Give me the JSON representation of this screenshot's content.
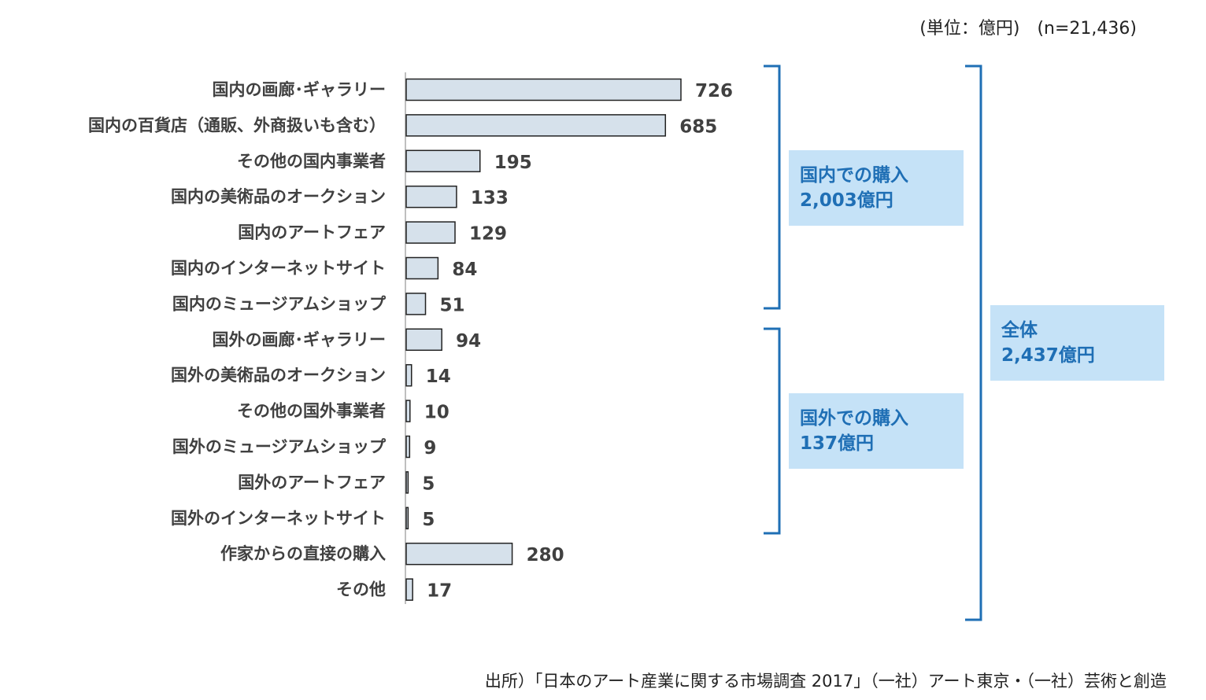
{
  "unit_note": "(単位：億円)　(n=21,436)",
  "source_note": "出所）「日本のアート産業に関する市場調査 2017」（一社）アート東京・（一社）芸術と創造",
  "groups": {
    "domestic": {
      "line1": "国内での購入",
      "line2": "2,003億円"
    },
    "overseas": {
      "line1": "国外での購入",
      "line2": "137億円"
    },
    "total": {
      "line1": "全体",
      "line2": "2,437億円"
    }
  },
  "colors": {
    "bar_fill": "#d6e1eb",
    "bar_stroke": "#222222",
    "bracket": "#1f6fb5",
    "group_box": "#c5e2f7",
    "group_text": "#1f6fb5"
  },
  "chart_data": {
    "type": "bar",
    "orientation": "horizontal",
    "categories": [
      "国内の画廊･ギャラリー",
      "国内の百貨店（通販、外商扱いも含む）",
      "その他の国内事業者",
      "国内の美術品のオークション",
      "国内のアートフェア",
      "国内のインターネットサイト",
      "国内のミュージアムショップ",
      "国外の画廊･ギャラリー",
      "国外の美術品のオークション",
      "その他の国外事業者",
      "国外のミュージアムショップ",
      "国外のアートフェア",
      "国外のインターネットサイト",
      "作家からの直接の購入",
      "その他"
    ],
    "values": [
      726,
      685,
      195,
      133,
      129,
      84,
      51,
      94,
      14,
      10,
      9,
      5,
      5,
      280,
      17
    ],
    "value_labels": [
      "726",
      "685",
      "195",
      "133",
      "129",
      "84",
      "51",
      "94",
      "14",
      "10",
      "9",
      "5",
      "5",
      "280",
      "17"
    ],
    "title": "",
    "xlabel": "",
    "ylabel": "",
    "grid": false,
    "legend": false
  }
}
